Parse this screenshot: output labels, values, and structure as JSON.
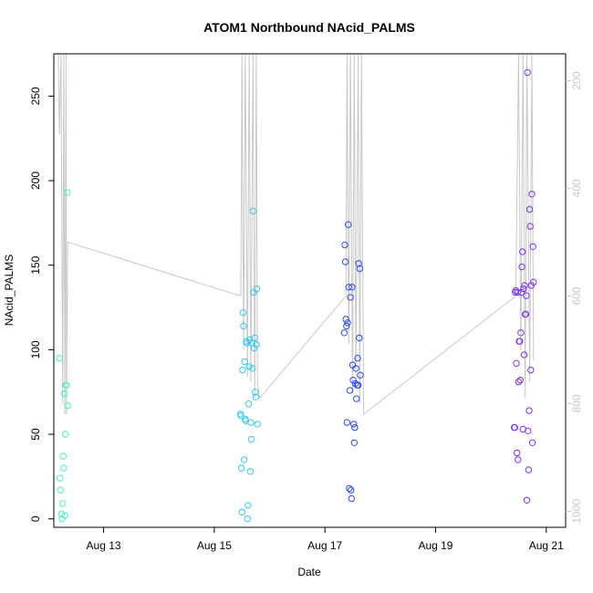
{
  "chart_data": {
    "type": "scatter",
    "title": "ATOM1 Northbound NAcid_PALMS",
    "xlabel": "Date",
    "ylabel": "NAcid_PALMS",
    "ylim": [
      -5,
      275
    ],
    "xlim": [
      12.1,
      21.35
    ],
    "x_ticks": [
      {
        "value": 13,
        "label": "Aug 13"
      },
      {
        "value": 15,
        "label": "Aug 15"
      },
      {
        "value": 17,
        "label": "Aug 17"
      },
      {
        "value": 19,
        "label": "Aug 19"
      },
      {
        "value": 21,
        "label": "Aug 21"
      }
    ],
    "y_ticks": [
      0,
      50,
      100,
      150,
      200,
      250
    ],
    "right_axis": {
      "label": "",
      "color": "#c8c8c8",
      "ticks": [
        200,
        400,
        600,
        800,
        1000
      ],
      "range_top": 150,
      "range_bottom": 1030,
      "inverted": true
    },
    "grid": false,
    "legend": "none",
    "color_scale": [
      "#40ffc8",
      "#3ad0f0",
      "#3a4af0",
      "#8a3af0"
    ],
    "series": [
      {
        "color": "#40f5c0",
        "x": [
          12.2,
          12.21,
          12.22,
          12.24,
          12.25,
          12.26,
          12.27,
          12.28,
          12.29,
          12.3,
          12.31,
          12.32,
          12.33,
          12.34,
          12.35
        ],
        "y": [
          95,
          24,
          17,
          3,
          0,
          9,
          37,
          30,
          74,
          2,
          50,
          79,
          79,
          193,
          67
        ]
      },
      {
        "color": "#34c8f0",
        "x": [
          15.47,
          15.48,
          15.49,
          15.5,
          15.51,
          15.52,
          15.53,
          15.54,
          15.55,
          15.56,
          15.57,
          15.58,
          15.59,
          15.6,
          15.61,
          15.62,
          15.63,
          15.64,
          15.65,
          15.66,
          15.67,
          15.68,
          15.69,
          15.7,
          15.71,
          15.72,
          15.73,
          15.74,
          15.75,
          15.76,
          15.77,
          15.78
        ],
        "y": [
          62,
          61,
          30,
          4,
          88,
          122,
          114,
          35,
          93,
          59,
          58,
          105,
          104,
          0,
          8,
          68,
          90,
          106,
          28,
          57,
          47,
          104,
          89,
          182,
          134,
          101,
          107,
          75,
          72,
          103,
          136,
          56
        ]
      },
      {
        "color": "#2c4af0",
        "x": [
          17.35,
          17.36,
          17.37,
          17.38,
          17.39,
          17.4,
          17.41,
          17.42,
          17.43,
          17.44,
          17.45,
          17.46,
          17.47,
          17.48,
          17.49,
          17.5,
          17.51,
          17.52,
          17.53,
          17.54,
          17.55,
          17.56,
          17.57,
          17.58,
          17.59,
          17.6,
          17.61,
          17.62,
          17.63,
          17.64
        ],
        "y": [
          110,
          162,
          152,
          118,
          114,
          57,
          116,
          174,
          137,
          18,
          76,
          131,
          17,
          12,
          137,
          91,
          82,
          56,
          45,
          54,
          80,
          89,
          71,
          79,
          95,
          79,
          151,
          107,
          148,
          85
        ]
      },
      {
        "color": "#7a34f0",
        "x": [
          20.42,
          20.43,
          20.44,
          20.45,
          20.46,
          20.47,
          20.48,
          20.49,
          20.5,
          20.51,
          20.52,
          20.53,
          20.54,
          20.55,
          20.56,
          20.57,
          20.58,
          20.59,
          20.6,
          20.61,
          20.62,
          20.63,
          20.64,
          20.65,
          20.66,
          20.67,
          20.68,
          20.69,
          20.7,
          20.71,
          20.72,
          20.73,
          20.74
        ],
        "y": [
          54,
          54,
          134,
          135,
          92,
          39,
          134,
          35,
          81,
          105,
          105,
          82,
          110,
          134,
          149,
          158,
          53,
          136,
          97,
          138,
          121,
          121,
          132,
          11,
          264,
          52,
          29,
          64,
          183,
          173,
          88,
          138,
          192
        ]
      },
      {
        "color": "#7a34f0",
        "x": [
          20.75,
          20.76,
          20.77
        ],
        "y": [
          45,
          161,
          140
        ]
      }
    ],
    "track": {
      "color": "#c8c8c8",
      "x": [
        12.18,
        12.2,
        12.23,
        12.26,
        12.28,
        12.3,
        12.32,
        12.33,
        12.35,
        15.48,
        15.5,
        15.53,
        15.56,
        15.6,
        15.63,
        15.66,
        15.7,
        15.73,
        15.76,
        15.78,
        15.82,
        17.38,
        17.4,
        17.43,
        17.46,
        17.5,
        17.53,
        17.56,
        17.6,
        17.63,
        17.66,
        17.7,
        20.45,
        20.5,
        20.54,
        20.58,
        20.62,
        20.65,
        20.7,
        20.74,
        20.77
      ],
      "y": [
        150,
        300,
        150,
        800,
        150,
        820,
        150,
        820,
        500,
        600,
        150,
        700,
        150,
        750,
        150,
        760,
        150,
        790,
        150,
        760,
        790,
        600,
        150,
        690,
        150,
        780,
        150,
        750,
        150,
        800,
        150,
        820,
        600,
        150,
        700,
        150,
        790,
        150,
        760,
        150,
        720
      ]
    }
  }
}
